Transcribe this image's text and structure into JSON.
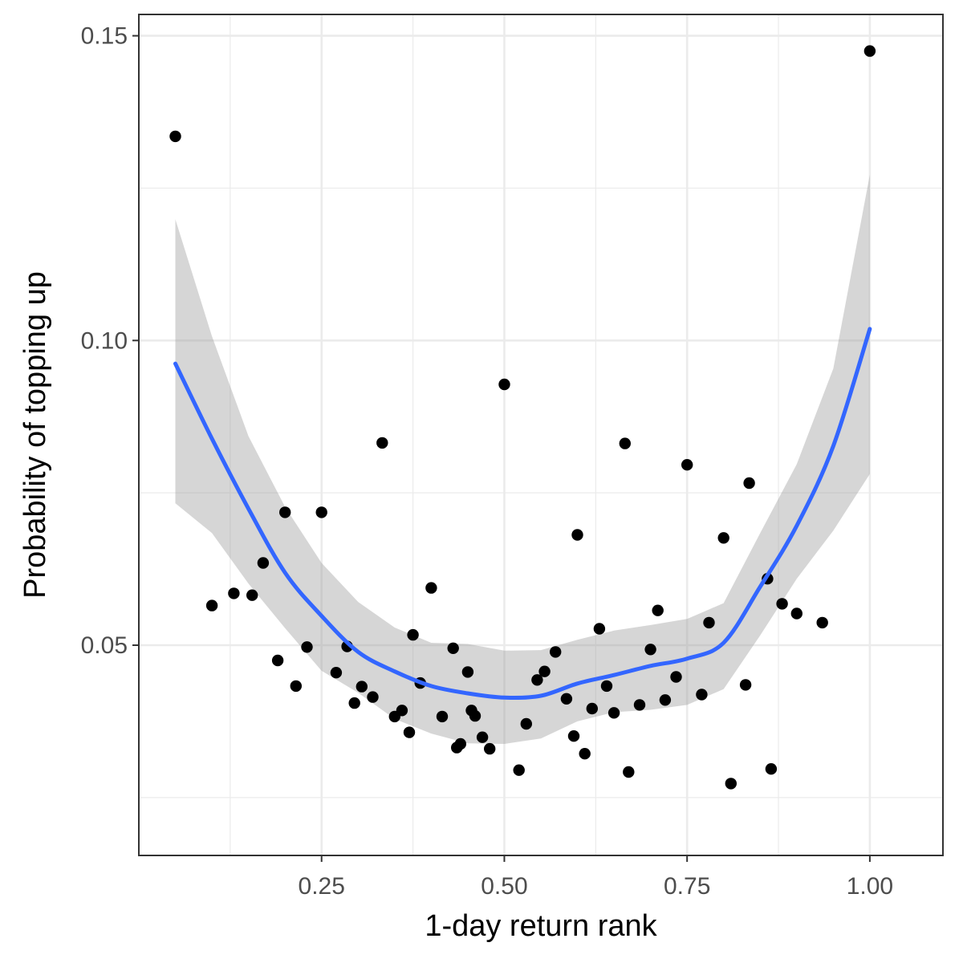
{
  "chart_data": {
    "type": "scatter",
    "title": "",
    "xlabel": "1-day return rank",
    "ylabel": "Probability of topping up",
    "xlim": [
      0.0,
      1.1
    ],
    "ylim": [
      0.0155,
      0.1535
    ],
    "x_ticks": [
      0.25,
      0.5,
      0.75,
      1.0
    ],
    "x_tick_labels": [
      "0.25",
      "0.50",
      "0.75",
      "1.00"
    ],
    "y_ticks": [
      0.05,
      0.1,
      0.15
    ],
    "y_tick_labels": [
      "0.05",
      "0.10",
      "0.15"
    ],
    "grid": true,
    "theme": "ggplot2 theme_bw",
    "legend": "none",
    "colors": {
      "points": "#000000",
      "smooth_line": "#3366FF",
      "confidence_band": "#999999",
      "grid": "#EBEBEB",
      "panel_border": "#333333"
    },
    "points": {
      "x": [
        0.05,
        0.1,
        0.13,
        0.155,
        0.17,
        0.19,
        0.2,
        0.215,
        0.23,
        0.25,
        0.27,
        0.285,
        0.295,
        0.305,
        0.32,
        0.333,
        0.35,
        0.36,
        0.37,
        0.375,
        0.385,
        0.4,
        0.415,
        0.43,
        0.435,
        0.44,
        0.45,
        0.455,
        0.46,
        0.47,
        0.48,
        0.5,
        0.52,
        0.53,
        0.545,
        0.555,
        0.57,
        0.585,
        0.595,
        0.6,
        0.61,
        0.62,
        0.63,
        0.64,
        0.65,
        0.665,
        0.67,
        0.685,
        0.7,
        0.71,
        0.72,
        0.735,
        0.75,
        0.77,
        0.78,
        0.8,
        0.81,
        0.83,
        0.835,
        0.86,
        0.865,
        0.88,
        0.9,
        0.935,
        1.0
      ],
      "y": [
        0.1335,
        0.0565,
        0.0585,
        0.0582,
        0.0635,
        0.0475,
        0.0718,
        0.0433,
        0.0497,
        0.0718,
        0.0455,
        0.0498,
        0.0405,
        0.0432,
        0.0415,
        0.0832,
        0.0383,
        0.0393,
        0.0357,
        0.0517,
        0.0438,
        0.0594,
        0.0383,
        0.0495,
        0.0332,
        0.0338,
        0.0456,
        0.0393,
        0.0384,
        0.0349,
        0.033,
        0.0928,
        0.0295,
        0.0371,
        0.0443,
        0.0457,
        0.0489,
        0.0412,
        0.0351,
        0.0681,
        0.0322,
        0.0396,
        0.0527,
        0.0433,
        0.0389,
        0.0831,
        0.0292,
        0.0402,
        0.0493,
        0.0557,
        0.041,
        0.0448,
        0.0796,
        0.0419,
        0.0537,
        0.0676,
        0.0273,
        0.0435,
        0.0766,
        0.0609,
        0.0297,
        0.0568,
        0.0552,
        0.0537,
        0.1475
      ]
    },
    "smooth": {
      "method": "loess",
      "x": [
        0.05,
        0.1,
        0.15,
        0.2,
        0.25,
        0.3,
        0.35,
        0.4,
        0.45,
        0.5,
        0.55,
        0.6,
        0.65,
        0.7,
        0.75,
        0.8,
        0.85,
        0.9,
        0.95,
        1.0
      ],
      "y": [
        0.0962,
        0.0839,
        0.0724,
        0.0619,
        0.0548,
        0.0489,
        0.0457,
        0.0433,
        0.0421,
        0.0414,
        0.0417,
        0.0437,
        0.0451,
        0.0466,
        0.0478,
        0.0504,
        0.0596,
        0.0696,
        0.0827,
        0.1019
      ],
      "lower": [
        0.0733,
        0.0684,
        0.0601,
        0.0528,
        0.0458,
        0.0422,
        0.0379,
        0.0355,
        0.0339,
        0.0338,
        0.0347,
        0.0375,
        0.039,
        0.0394,
        0.0402,
        0.0428,
        0.0516,
        0.0609,
        0.0688,
        0.0781
      ],
      "upper": [
        0.1199,
        0.1007,
        0.0843,
        0.0727,
        0.0635,
        0.0571,
        0.0529,
        0.0504,
        0.0502,
        0.0491,
        0.0492,
        0.0509,
        0.0524,
        0.0533,
        0.0543,
        0.0569,
        0.0684,
        0.0797,
        0.0954,
        0.1272
      ]
    }
  }
}
